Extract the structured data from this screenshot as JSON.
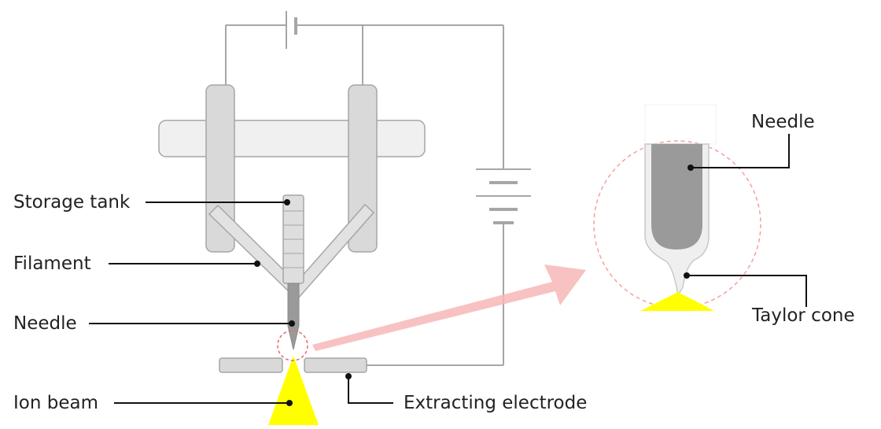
{
  "labels": {
    "storage_tank": "Storage tank",
    "filament": "Filament",
    "needle": "Needle",
    "ion_beam": "Ion beam",
    "extracting_electrode": "Extracting electrode",
    "needle_zoom": "Needle",
    "taylor_cone": "Taylor cone"
  },
  "colors": {
    "wire": "#a6a6a6",
    "component_fill": "#d9d9d9",
    "component_stroke": "#a6a6a6",
    "bar_fill": "#f0f0f0",
    "needle_fill": "#9a9a9a",
    "beam": "#ffff00",
    "zoom_circle": "#f4a0a0",
    "arrow": "#f7b7b7",
    "leader": "#111111"
  }
}
